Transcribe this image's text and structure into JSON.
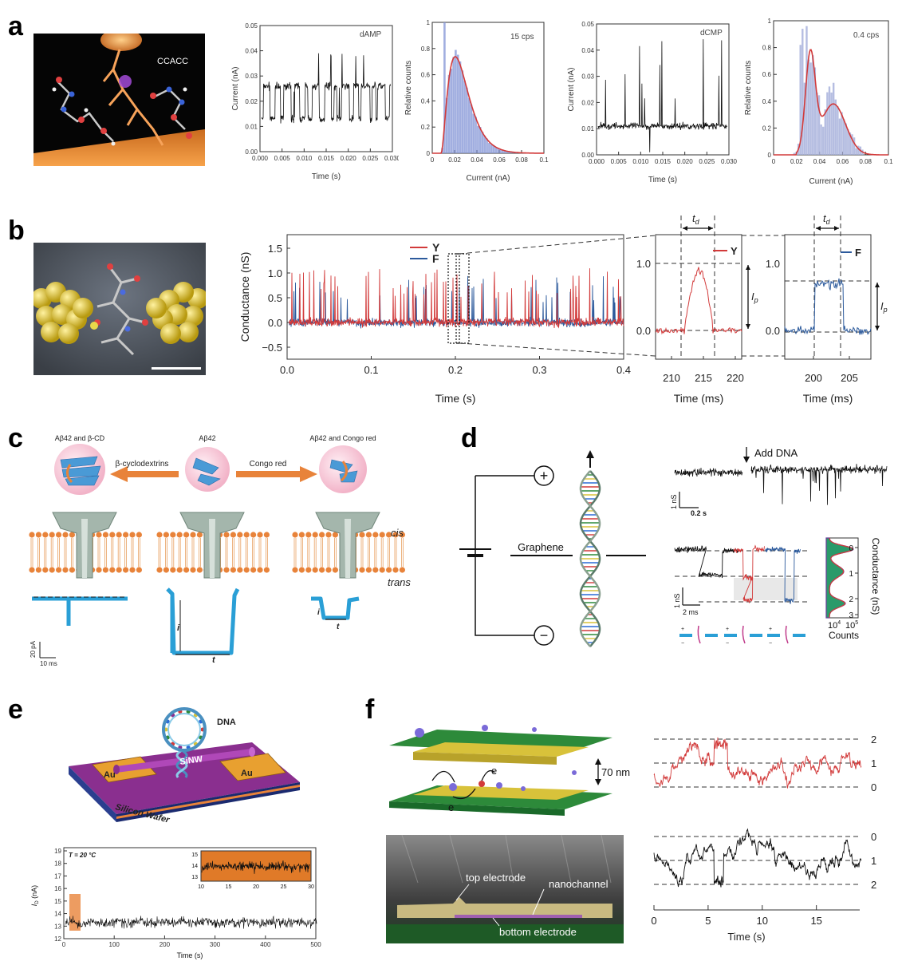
{
  "panels": {
    "a": "a",
    "b": "b",
    "c": "c",
    "d": "d",
    "e": "e",
    "f": "f"
  },
  "colors": {
    "red": "#d23a3a",
    "blue": "#2c5a9c",
    "cyan": "#2a9fd6",
    "orange": "#e8833a",
    "gold": "#d8c23a",
    "green": "#2d8a3a",
    "purple": "#8a2f8f"
  },
  "panel_a": {
    "molecule_label": "CCACC",
    "dAMP_trace": {
      "label": "dAMP",
      "xlabel": "Time (s)",
      "ylabel": "Current (nA)",
      "xticks": [
        "0.000",
        "0.005",
        "0.010",
        "0.015",
        "0.020",
        "0.025",
        "0.030"
      ],
      "yticks": [
        "0.00",
        "0.01",
        "0.02",
        "0.03",
        "0.04",
        "0.05"
      ]
    },
    "dAMP_hist": {
      "label": "15 cps",
      "xlabel": "Current (nA)",
      "ylabel": "Relative counts",
      "xticks": [
        "0",
        "0.02",
        "0.04",
        "0.06",
        "0.08",
        "0.1"
      ],
      "yticks": [
        "0",
        "0.2",
        "0.4",
        "0.6",
        "0.8",
        "1"
      ]
    },
    "dCMP_trace": {
      "label": "dCMP",
      "xlabel": "Time (s)",
      "ylabel": "Current (nA)",
      "xticks": [
        "0.000",
        "0.005",
        "0.010",
        "0.015",
        "0.020",
        "0.025",
        "0.030"
      ],
      "yticks": [
        "0.00",
        "0.01",
        "0.02",
        "0.03",
        "0.04",
        "0.05"
      ]
    },
    "dCMP_hist": {
      "label": "0.4 cps",
      "xlabel": "Current (nA)",
      "ylabel": "Relative counts",
      "xticks": [
        "0",
        "0.02",
        "0.04",
        "0.06",
        "0.08",
        "0.1"
      ],
      "yticks": [
        "0",
        "0.2",
        "0.4",
        "0.6",
        "0.8",
        "1"
      ]
    }
  },
  "panel_b": {
    "ylabel": "Conductance (nS)",
    "yticks": [
      "1.5",
      "1.0",
      "0.5",
      "0.0",
      "−0.5"
    ],
    "xticks": [
      "0.0",
      "0.1",
      "0.2",
      "0.3",
      "0.4"
    ],
    "xlabel": "Time (s)",
    "legend": [
      "Y",
      "F"
    ],
    "zoom1": {
      "xticks": [
        "210",
        "215",
        "220"
      ],
      "yticks": [
        "1.0",
        "0.0"
      ],
      "xlabel": "Time (ms)",
      "td": "t",
      "td_sub": "d",
      "ip": "I",
      "ip_sub": "p",
      "legend": "Y"
    },
    "zoom2": {
      "xticks": [
        "200",
        "205"
      ],
      "yticks": [
        "1.0",
        "0.0"
      ],
      "xlabel": "Time (ms)",
      "td": "t",
      "td_sub": "d",
      "ip": "I",
      "ip_sub": "p",
      "legend": "F"
    }
  },
  "panel_c": {
    "left_label": "Aβ42 and β-CD",
    "mid_label": "Aβ42",
    "right_label": "Aβ42 and Congo red",
    "arrow_left": "β-cyclodextrins",
    "arrow_right": "Congo red",
    "cis": "cis",
    "trans": "trans",
    "scale_y": "20 pA",
    "scale_x": "10 ms",
    "i": "i",
    "t": "t"
  },
  "panel_d": {
    "graphene": "Graphene",
    "plus": "+",
    "minus": "−",
    "add_dna": "Add DNA",
    "scale_top_y": "1 nS",
    "scale_top_x": "0.2 s",
    "scale_bot_y": "1 nS",
    "scale_bot_x": "2 ms",
    "hist_yticks": [
      "0",
      "1",
      "2",
      "3"
    ],
    "hist_ylabel": "Conductance (nS)",
    "hist_xticks": [
      "10",
      "10"
    ],
    "hist_xtick_exps": [
      "4",
      "5"
    ],
    "hist_xlabel": "Counts"
  },
  "panel_e": {
    "dna": "DNA",
    "au": "Au",
    "sinw": "SiNW",
    "wafer": "Silicon Wafer",
    "temp": "T = 20 °C",
    "ylabel": "I",
    "ylabel_sub": "D",
    "ylabel_unit": " (nA)",
    "yticks": [
      "19",
      "18",
      "17",
      "16",
      "15",
      "14",
      "13",
      "12"
    ],
    "xticks": [
      "0",
      "100",
      "200",
      "300",
      "400",
      "500"
    ],
    "xlabel": "Time (s)",
    "inset_yticks": [
      "15",
      "14",
      "13"
    ],
    "inset_xticks": [
      "10",
      "15",
      "20",
      "25",
      "30"
    ]
  },
  "panel_f": {
    "gap": "70 nm",
    "electron": "e",
    "top_electrode": "top electrode",
    "nanochannel": "nanochannel",
    "bottom_electrode": "bottom electrode",
    "red_levels": [
      "2",
      "1",
      "0"
    ],
    "black_levels": [
      "0",
      "1",
      "2"
    ],
    "xticks": [
      "0",
      "5",
      "10",
      "15"
    ],
    "xlabel": "Time (s)"
  }
}
